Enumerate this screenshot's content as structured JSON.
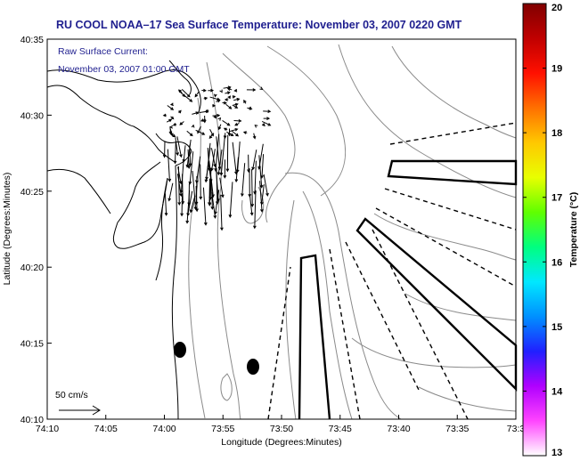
{
  "title": "RU COOL  NOAA–17  Sea Surface Temperature:  November 03, 2007 0220 GMT",
  "inset": {
    "line1": "Raw Surface Current:",
    "line2": "November 03, 2007 01:00 GMT"
  },
  "scale_label": "50 cm/s",
  "chart_data": {
    "type": "map",
    "xlabel": "Longitude (Degrees:Minutes)",
    "ylabel": "Latitude (Degrees:Minutes)",
    "x_ticks": [
      "74:10",
      "74:05",
      "74:00",
      "73:55",
      "73:50",
      "73:45",
      "73:40",
      "73:35",
      "73:3"
    ],
    "y_ticks": [
      "40:10",
      "40:15",
      "40:20",
      "40:25",
      "40:30",
      "40:35"
    ],
    "xlim_minutes_west": [
      70,
      30
    ],
    "ylim_minutes_north": [
      10,
      35
    ],
    "colorbar": {
      "label": "Temperature (°C)",
      "ticks": [
        "13",
        "14",
        "15",
        "16",
        "17",
        "18",
        "19",
        "20"
      ],
      "range": [
        13,
        20
      ],
      "colors": [
        "#ffffff",
        "#ff44ff",
        "#b000ff",
        "#2020ff",
        "#0090ff",
        "#00e8ff",
        "#00ff80",
        "#60ff00",
        "#e8ff00",
        "#ffc800",
        "#ff7000",
        "#ff1000",
        "#c00000",
        "#800000"
      ]
    },
    "markers": [
      {
        "type": "filled-ellipse",
        "lon_min_w": 59,
        "lat_min_n": 14.7
      },
      {
        "type": "filled-ellipse",
        "lon_min_w": 52.4,
        "lat_min_n": 13.5
      }
    ]
  }
}
